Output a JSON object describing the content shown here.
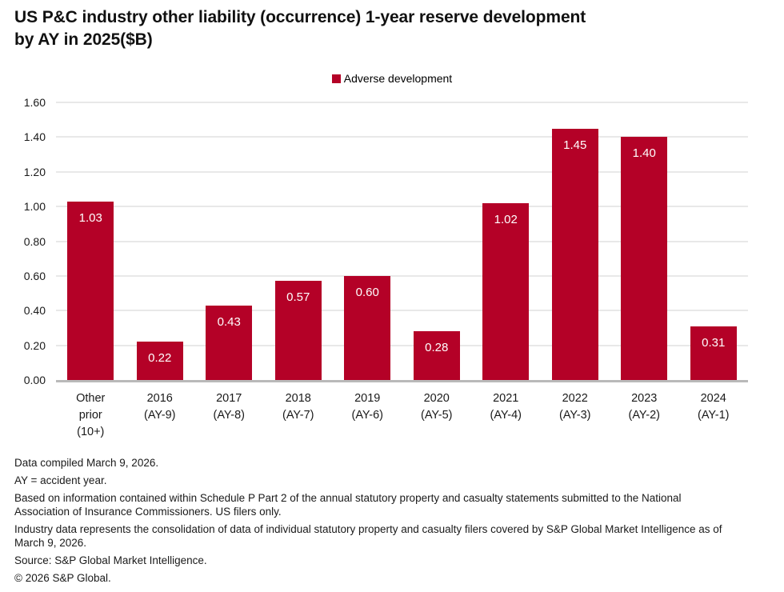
{
  "header": {
    "title_line1": "US P&C industry other liability (occurrence) 1-year reserve development",
    "title_line2": "by AY in 2025($B)"
  },
  "legend": {
    "label": "Adverse development"
  },
  "chart_data": {
    "type": "bar",
    "title": "US P&C industry other liability (occurrence) 1-year reserve development by AY in 2025($B)",
    "series_name": "Adverse development",
    "categories": [
      "Other\nprior\n(10+)",
      "2016\n(AY-9)",
      "2017\n(AY-8)",
      "2018\n(AY-7)",
      "2019\n(AY-6)",
      "2020\n(AY-5)",
      "2021\n(AY-4)",
      "2022\n(AY-3)",
      "2023\n(AY-2)",
      "2024\n(AY-1)"
    ],
    "values": [
      1.03,
      0.22,
      0.43,
      0.57,
      0.6,
      0.28,
      1.02,
      1.45,
      1.4,
      0.31
    ],
    "xlabel": "",
    "ylabel": "",
    "ylim": [
      0,
      1.6
    ],
    "ytick_labels": [
      "0.00",
      "0.20",
      "0.40",
      "0.60",
      "0.80",
      "1.00",
      "1.20",
      "1.40",
      "1.60"
    ],
    "grid": true,
    "legend_position": "top-center",
    "bar_color": "#B40127",
    "value_labels": [
      "1.03",
      "0.22",
      "0.43",
      "0.57",
      "0.60",
      "0.28",
      "1.02",
      "1.45",
      "1.40",
      "0.31"
    ]
  },
  "footnotes": {
    "lines": [
      "Data compiled March 9, 2026.",
      "AY = accident year.",
      "Based on information contained within Schedule P Part 2 of the annual statutory property and casualty statements submitted to the National Association of Insurance Commissioners. US filers only.",
      "Industry data represents the consolidation of data of individual statutory property and casualty filers covered by S&P Global Market Intelligence as of March 9, 2026.",
      "Source: S&P Global Market Intelligence.",
      "© 2026 S&P Global."
    ]
  }
}
